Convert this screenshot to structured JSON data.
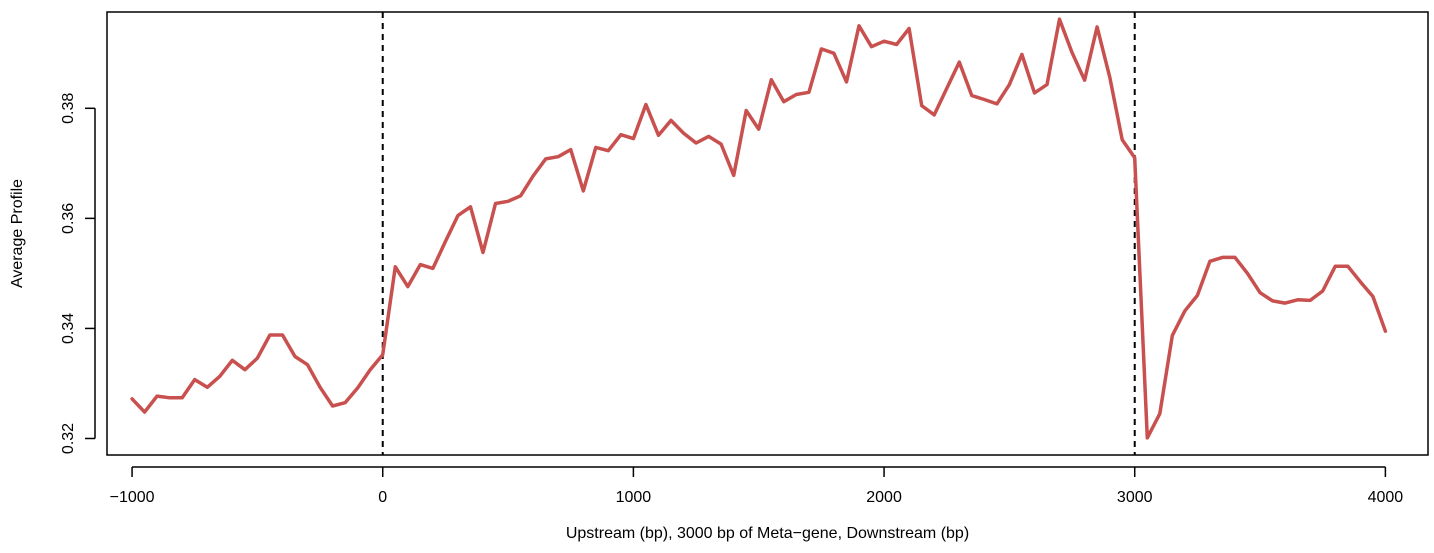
{
  "chart_data": {
    "type": "line",
    "title": "",
    "xlabel": "Upstream (bp), 3000 bp of Meta−gene, Downstream (bp)",
    "ylabel": "Average Profile",
    "xlim": [
      -1100,
      4170
    ],
    "ylim": [
      0.317,
      0.3975
    ],
    "x_ticks": [
      -1000,
      0,
      1000,
      2000,
      3000,
      4000
    ],
    "x_tick_labels": [
      "−1000",
      "0",
      "1000",
      "2000",
      "3000",
      "4000"
    ],
    "y_ticks": [
      0.32,
      0.34,
      0.36,
      0.38
    ],
    "y_tick_labels": [
      "0.32",
      "0.34",
      "0.36",
      "0.38"
    ],
    "vlines": [
      0,
      3000
    ],
    "vline_style": "dashed",
    "grid": false,
    "legend": "none",
    "line_color": "#C8504E",
    "series": [
      {
        "x": [
          -1000,
          -950,
          -900,
          -850,
          -800,
          -750,
          -700,
          -650,
          -600,
          -550,
          -500,
          -450,
          -400,
          -350,
          -300,
          -250,
          -200,
          -150,
          -100,
          -50,
          0,
          50,
          100,
          150,
          200,
          250,
          300,
          350,
          400,
          450,
          500,
          550,
          600,
          650,
          700,
          750,
          800,
          850,
          900,
          950,
          1000,
          1050,
          1100,
          1150,
          1200,
          1250,
          1300,
          1350,
          1400,
          1450,
          1500,
          1550,
          1600,
          1650,
          1700,
          1750,
          1800,
          1850,
          1900,
          1950,
          2000,
          2050,
          2100,
          2150,
          2200,
          2250,
          2300,
          2350,
          2400,
          2450,
          2500,
          2550,
          2600,
          2650,
          2700,
          2750,
          2800,
          2850,
          2900,
          2950,
          3000,
          3050,
          3100,
          3150,
          3200,
          3250,
          3300,
          3350,
          3400,
          3450,
          3500,
          3550,
          3600,
          3650,
          3700,
          3750,
          3800,
          3850,
          3900,
          3950,
          4000
        ],
        "values": [
          0.3272,
          0.3248,
          0.3277,
          0.3274,
          0.3274,
          0.3307,
          0.3293,
          0.3313,
          0.3342,
          0.3325,
          0.3346,
          0.3388,
          0.3388,
          0.3349,
          0.3334,
          0.3293,
          0.3259,
          0.3265,
          0.3292,
          0.3325,
          0.3352,
          0.3512,
          0.3476,
          0.3516,
          0.3509,
          0.3558,
          0.3605,
          0.3621,
          0.3538,
          0.3627,
          0.3631,
          0.3641,
          0.3677,
          0.3708,
          0.3712,
          0.3725,
          0.365,
          0.3729,
          0.3723,
          0.3752,
          0.3745,
          0.3807,
          0.3751,
          0.3778,
          0.3755,
          0.3737,
          0.3749,
          0.3735,
          0.3678,
          0.3796,
          0.3762,
          0.3852,
          0.3812,
          0.3825,
          0.3829,
          0.3908,
          0.39,
          0.3848,
          0.395,
          0.3912,
          0.3922,
          0.3916,
          0.3945,
          0.3805,
          0.3788,
          0.3836,
          0.3884,
          0.3823,
          0.3816,
          0.3808,
          0.3843,
          0.3898,
          0.3828,
          0.3843,
          0.3962,
          0.3901,
          0.3851,
          0.3948,
          0.3857,
          0.3743,
          0.371,
          0.3201,
          0.3245,
          0.3387,
          0.3432,
          0.346,
          0.3522,
          0.3529,
          0.3529,
          0.35,
          0.3465,
          0.345,
          0.3446,
          0.3452,
          0.3451,
          0.3468,
          0.3513,
          0.3513,
          0.3485,
          0.3458,
          0.3395
        ]
      }
    ]
  }
}
